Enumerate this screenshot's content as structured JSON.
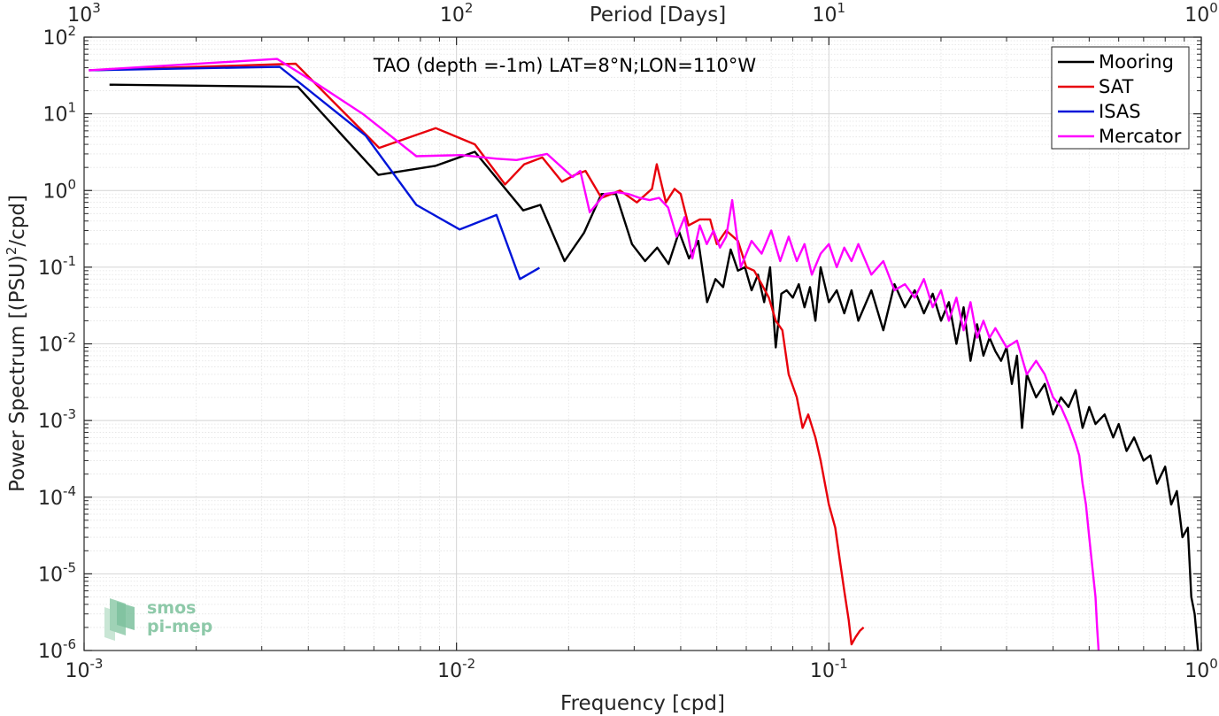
{
  "chart_data": {
    "type": "line",
    "title": "TAO (depth =-1m) LAT=8°N;LON=110°W",
    "xlabel": "Frequency [cpd]",
    "ylabel": "Power Spectrum [(PSU)",
    "ylabel_sup": "2",
    "ylabel_tail": "/cpd]",
    "top_xlabel": "Period [Days]",
    "x_scale": "log",
    "y_scale": "log",
    "xlim": [
      0.001,
      1
    ],
    "ylim": [
      1e-06,
      100
    ],
    "grid": true,
    "legend_position": "top-right",
    "x_ticks": [
      {
        "base": "10",
        "exp": "-3",
        "value": 0.001
      },
      {
        "base": "10",
        "exp": "-2",
        "value": 0.01
      },
      {
        "base": "10",
        "exp": "-1",
        "value": 0.1
      },
      {
        "base": "10",
        "exp": "0",
        "value": 1
      }
    ],
    "y_ticks": [
      {
        "base": "10",
        "exp": "2",
        "value": 100
      },
      {
        "base": "10",
        "exp": "1",
        "value": 10
      },
      {
        "base": "10",
        "exp": "0",
        "value": 1
      },
      {
        "base": "10",
        "exp": "-1",
        "value": 0.1
      },
      {
        "base": "10",
        "exp": "-2",
        "value": 0.01
      },
      {
        "base": "10",
        "exp": "-3",
        "value": 0.001
      },
      {
        "base": "10",
        "exp": "-4",
        "value": 0.0001
      },
      {
        "base": "10",
        "exp": "-5",
        "value": 1e-05
      },
      {
        "base": "10",
        "exp": "-6",
        "value": 1e-06
      }
    ],
    "top_ticks": [
      {
        "base": "10",
        "exp": "3",
        "period": 1000
      },
      {
        "base": "10",
        "exp": "2",
        "period": 100
      },
      {
        "base": "10",
        "exp": "1",
        "period": 10
      },
      {
        "base": "10",
        "exp": "0",
        "period": 1
      }
    ],
    "series": [
      {
        "name": "Mooring",
        "color": "#000000",
        "points": [
          [
            0.00117,
            24
          ],
          [
            0.00375,
            22.5
          ],
          [
            0.00617,
            1.6
          ],
          [
            0.0088,
            2.1
          ],
          [
            0.0112,
            3.2
          ],
          [
            0.0151,
            0.55
          ],
          [
            0.0168,
            0.65
          ],
          [
            0.0195,
            0.12
          ],
          [
            0.022,
            0.28
          ],
          [
            0.0245,
            0.9
          ],
          [
            0.0268,
            0.9
          ],
          [
            0.0296,
            0.2
          ],
          [
            0.0321,
            0.12
          ],
          [
            0.0346,
            0.18
          ],
          [
            0.0371,
            0.11
          ],
          [
            0.0396,
            0.29
          ],
          [
            0.0421,
            0.13
          ],
          [
            0.0446,
            0.22
          ],
          [
            0.0471,
            0.035
          ],
          [
            0.0496,
            0.07
          ],
          [
            0.052,
            0.055
          ],
          [
            0.0545,
            0.17
          ],
          [
            0.057,
            0.09
          ],
          [
            0.0595,
            0.1
          ],
          [
            0.062,
            0.05
          ],
          [
            0.0645,
            0.08
          ],
          [
            0.067,
            0.035
          ],
          [
            0.0695,
            0.1
          ],
          [
            0.072,
            0.009
          ],
          [
            0.0745,
            0.045
          ],
          [
            0.077,
            0.05
          ],
          [
            0.08,
            0.04
          ],
          [
            0.083,
            0.06
          ],
          [
            0.086,
            0.03
          ],
          [
            0.089,
            0.055
          ],
          [
            0.092,
            0.02
          ],
          [
            0.095,
            0.1
          ],
          [
            0.1,
            0.035
          ],
          [
            0.105,
            0.05
          ],
          [
            0.11,
            0.025
          ],
          [
            0.115,
            0.05
          ],
          [
            0.12,
            0.02
          ],
          [
            0.13,
            0.05
          ],
          [
            0.14,
            0.015
          ],
          [
            0.15,
            0.06
          ],
          [
            0.16,
            0.03
          ],
          [
            0.17,
            0.05
          ],
          [
            0.18,
            0.025
          ],
          [
            0.19,
            0.045
          ],
          [
            0.2,
            0.02
          ],
          [
            0.21,
            0.035
          ],
          [
            0.22,
            0.01
          ],
          [
            0.23,
            0.03
          ],
          [
            0.24,
            0.006
          ],
          [
            0.25,
            0.018
          ],
          [
            0.26,
            0.007
          ],
          [
            0.27,
            0.012
          ],
          [
            0.28,
            0.008
          ],
          [
            0.29,
            0.006
          ],
          [
            0.3,
            0.009
          ],
          [
            0.31,
            0.003
          ],
          [
            0.32,
            0.007
          ],
          [
            0.33,
            0.0008
          ],
          [
            0.34,
            0.004
          ],
          [
            0.36,
            0.002
          ],
          [
            0.38,
            0.003
          ],
          [
            0.4,
            0.0012
          ],
          [
            0.42,
            0.002
          ],
          [
            0.44,
            0.0015
          ],
          [
            0.46,
            0.0025
          ],
          [
            0.48,
            0.0008
          ],
          [
            0.5,
            0.0015
          ],
          [
            0.52,
            0.0009
          ],
          [
            0.55,
            0.0012
          ],
          [
            0.58,
            0.0006
          ],
          [
            0.6,
            0.0009
          ],
          [
            0.63,
            0.0004
          ],
          [
            0.66,
            0.0006
          ],
          [
            0.7,
            0.0003
          ],
          [
            0.73,
            0.00035
          ],
          [
            0.76,
            0.00015
          ],
          [
            0.8,
            0.00025
          ],
          [
            0.83,
            8e-05
          ],
          [
            0.86,
            0.00012
          ],
          [
            0.89,
            3e-05
          ],
          [
            0.92,
            4e-05
          ],
          [
            0.94,
            5e-06
          ],
          [
            0.96,
            3e-06
          ],
          [
            0.98,
            1e-06
          ]
        ]
      },
      {
        "name": "SAT",
        "color": "#e8000b",
        "points": [
          [
            0.00103,
            37
          ],
          [
            0.0037,
            45
          ],
          [
            0.0062,
            3.6
          ],
          [
            0.0088,
            6.5
          ],
          [
            0.0112,
            4
          ],
          [
            0.0135,
            1.2
          ],
          [
            0.0152,
            2.2
          ],
          [
            0.017,
            2.7
          ],
          [
            0.0192,
            1.3
          ],
          [
            0.0208,
            1.6
          ],
          [
            0.0222,
            1.8
          ],
          [
            0.0245,
            0.8
          ],
          [
            0.0275,
            1
          ],
          [
            0.0305,
            0.7
          ],
          [
            0.0335,
            1.05
          ],
          [
            0.0345,
            2.2
          ],
          [
            0.0365,
            0.7
          ],
          [
            0.0385,
            1.05
          ],
          [
            0.04,
            0.9
          ],
          [
            0.042,
            0.35
          ],
          [
            0.045,
            0.42
          ],
          [
            0.048,
            0.42
          ],
          [
            0.05,
            0.2
          ],
          [
            0.053,
            0.3
          ],
          [
            0.057,
            0.22
          ],
          [
            0.06,
            0.1
          ],
          [
            0.063,
            0.09
          ],
          [
            0.066,
            0.06
          ],
          [
            0.069,
            0.04
          ],
          [
            0.072,
            0.02
          ],
          [
            0.075,
            0.015
          ],
          [
            0.078,
            0.004
          ],
          [
            0.082,
            0.002
          ],
          [
            0.085,
            0.0008
          ],
          [
            0.088,
            0.0012
          ],
          [
            0.092,
            0.0006
          ],
          [
            0.095,
            0.0003
          ],
          [
            0.1,
            8e-05
          ],
          [
            0.104,
            4e-05
          ],
          [
            0.107,
            1.5e-05
          ],
          [
            0.11,
            6e-06
          ],
          [
            0.113,
            2.5e-06
          ],
          [
            0.115,
            1.2e-06
          ],
          [
            0.118,
            1.5e-06
          ],
          [
            0.121,
            1.8e-06
          ],
          [
            0.124,
            2e-06
          ]
        ]
      },
      {
        "name": "ISAS",
        "color": "#0015d9",
        "points": [
          [
            0.00103,
            37
          ],
          [
            0.00335,
            41
          ],
          [
            0.0057,
            5.2
          ],
          [
            0.0078,
            0.65
          ],
          [
            0.0102,
            0.31
          ],
          [
            0.0128,
            0.48
          ],
          [
            0.0148,
            0.07
          ],
          [
            0.0167,
            0.098
          ]
        ]
      },
      {
        "name": "Mercator",
        "color": "#ff00ff",
        "points": [
          [
            0.00103,
            37
          ],
          [
            0.0033,
            52
          ],
          [
            0.0042,
            25
          ],
          [
            0.0056,
            10
          ],
          [
            0.0078,
            2.8
          ],
          [
            0.0103,
            2.9
          ],
          [
            0.0128,
            2.6
          ],
          [
            0.0145,
            2.5
          ],
          [
            0.0175,
            3
          ],
          [
            0.0205,
            1.5
          ],
          [
            0.0215,
            1.8
          ],
          [
            0.0228,
            0.52
          ],
          [
            0.025,
            0.9
          ],
          [
            0.027,
            0.95
          ],
          [
            0.029,
            0.9
          ],
          [
            0.031,
            0.8
          ],
          [
            0.033,
            0.75
          ],
          [
            0.035,
            0.8
          ],
          [
            0.037,
            0.6
          ],
          [
            0.039,
            0.25
          ],
          [
            0.041,
            0.45
          ],
          [
            0.043,
            0.13
          ],
          [
            0.045,
            0.35
          ],
          [
            0.047,
            0.2
          ],
          [
            0.049,
            0.3
          ],
          [
            0.051,
            0.18
          ],
          [
            0.053,
            0.25
          ],
          [
            0.055,
            0.75
          ],
          [
            0.058,
            0.1
          ],
          [
            0.062,
            0.22
          ],
          [
            0.066,
            0.15
          ],
          [
            0.07,
            0.3
          ],
          [
            0.074,
            0.12
          ],
          [
            0.078,
            0.25
          ],
          [
            0.082,
            0.12
          ],
          [
            0.086,
            0.2
          ],
          [
            0.09,
            0.08
          ],
          [
            0.095,
            0.15
          ],
          [
            0.1,
            0.2
          ],
          [
            0.105,
            0.1
          ],
          [
            0.11,
            0.18
          ],
          [
            0.115,
            0.12
          ],
          [
            0.12,
            0.2
          ],
          [
            0.13,
            0.08
          ],
          [
            0.14,
            0.12
          ],
          [
            0.15,
            0.05
          ],
          [
            0.16,
            0.06
          ],
          [
            0.17,
            0.04
          ],
          [
            0.18,
            0.07
          ],
          [
            0.19,
            0.03
          ],
          [
            0.2,
            0.05
          ],
          [
            0.21,
            0.02
          ],
          [
            0.22,
            0.04
          ],
          [
            0.23,
            0.015
          ],
          [
            0.24,
            0.035
          ],
          [
            0.25,
            0.012
          ],
          [
            0.26,
            0.02
          ],
          [
            0.27,
            0.012
          ],
          [
            0.28,
            0.016
          ],
          [
            0.3,
            0.009
          ],
          [
            0.32,
            0.011
          ],
          [
            0.34,
            0.004
          ],
          [
            0.36,
            0.006
          ],
          [
            0.38,
            0.004
          ],
          [
            0.4,
            0.002
          ],
          [
            0.42,
            0.0015
          ],
          [
            0.44,
            0.0009
          ],
          [
            0.46,
            0.0005
          ],
          [
            0.47,
            0.00035
          ],
          [
            0.48,
            0.00015
          ],
          [
            0.49,
            8e-05
          ],
          [
            0.5,
            3e-05
          ],
          [
            0.51,
            1.2e-05
          ],
          [
            0.52,
            5e-06
          ],
          [
            0.525,
            2e-06
          ],
          [
            0.53,
            1e-06
          ]
        ]
      }
    ]
  },
  "logo": {
    "line1": "smos",
    "line2": "pi-mep"
  }
}
